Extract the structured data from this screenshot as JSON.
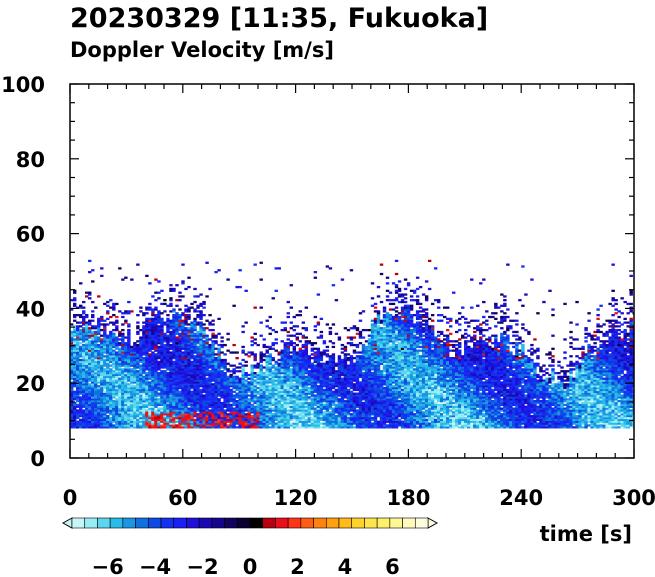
{
  "chart_data": {
    "type": "heatmap",
    "title": "20230329 [11:35, Fukuoka]",
    "subtitle": "Doppler Velocity [m/s]",
    "xlabel": "time [s]",
    "ylabel": "",
    "xlim": [
      0,
      300
    ],
    "ylim": [
      0,
      100
    ],
    "x_ticks": [
      0,
      60,
      120,
      180,
      240,
      300
    ],
    "x_tick_labels": [
      "0",
      "60",
      "120",
      "180",
      "240",
      "300"
    ],
    "y_ticks": [
      0,
      20,
      40,
      60,
      80,
      100
    ],
    "y_tick_labels": [
      "0",
      "20",
      "40",
      "60",
      "80",
      "100"
    ],
    "grid": false,
    "data_summary": {
      "lowest_gate": 8,
      "dense_echo_top": 32,
      "max_echo_height": 53,
      "dominant_velocity_range": [
        -6,
        -2
      ],
      "positive_patch": {
        "time_range": [
          40,
          100
        ],
        "height_range": [
          8,
          12
        ],
        "velocity": 1
      }
    },
    "colorbar": {
      "range": [
        -7.5,
        7.5
      ],
      "ticks": [
        -6,
        -4,
        -2,
        0,
        2,
        4,
        6
      ],
      "tick_labels": [
        "−6",
        "−4",
        "−2",
        "0",
        "2",
        "4",
        "6"
      ],
      "colors": [
        "#c9f5f7",
        "#98ecf3",
        "#5cd6ec",
        "#27bce7",
        "#1c96e4",
        "#1070e0",
        "#0f49e3",
        "#1430f0",
        "#1a1ff5",
        "#1e10d8",
        "#1a08b4",
        "#15058c",
        "#12035e",
        "#0c0130",
        "#000000",
        "#b80010",
        "#e8101a",
        "#ff3418",
        "#ff5d14",
        "#ff8210",
        "#ffa010",
        "#ffbb18",
        "#ffd22c",
        "#ffe44c",
        "#fff06c",
        "#fff694",
        "#fffac0",
        "#fffde0"
      ]
    }
  }
}
